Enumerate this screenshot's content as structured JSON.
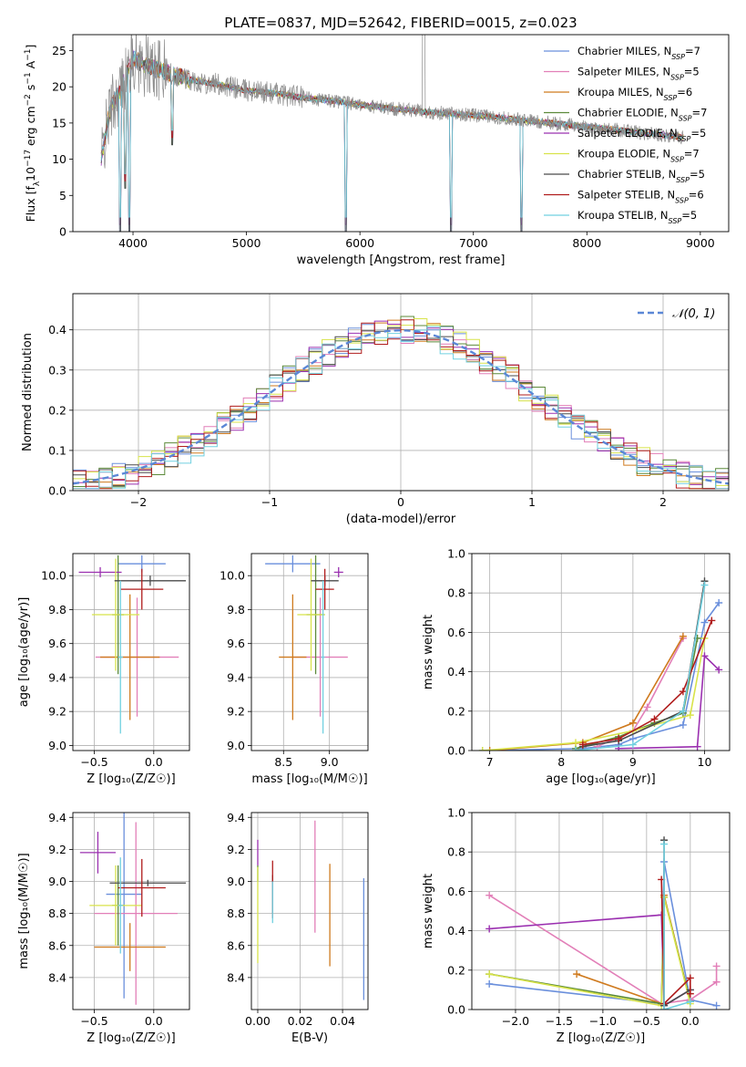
{
  "figure": {
    "title": "PLATE=0837, MJD=52642, FIBERID=0015, z=0.023"
  },
  "models": [
    {
      "name": "Chabrier MILES, N",
      "sub": "SSP",
      "tail": "=7",
      "color": "#6a8fdc"
    },
    {
      "name": "Salpeter MILES, N",
      "sub": "SSP",
      "tail": "=5",
      "color": "#e27fb8"
    },
    {
      "name": "Kroupa MILES, N",
      "sub": "SSP",
      "tail": "=6",
      "color": "#cf7a1e"
    },
    {
      "name": "Chabrier ELODIE, N",
      "sub": "SSP",
      "tail": "=7",
      "color": "#5c8a3a"
    },
    {
      "name": "Salpeter ELODIE, N",
      "sub": "SSP",
      "tail": "=5",
      "color": "#9b30b0"
    },
    {
      "name": "Kroupa ELODIE, N",
      "sub": "SSP",
      "tail": "=7",
      "color": "#d8e34a"
    },
    {
      "name": "Chabrier STELIB, N",
      "sub": "SSP",
      "tail": "=5",
      "color": "#4a4a4a"
    },
    {
      "name": "Salpeter STELIB, N",
      "sub": "SSP",
      "tail": "=6",
      "color": "#b01c1c"
    },
    {
      "name": "Kroupa STELIB, N",
      "sub": "SSP",
      "tail": "=5",
      "color": "#70d0e0"
    }
  ],
  "chart_data": [
    {
      "id": "spectrum",
      "type": "line",
      "xlabel": "wavelength [Angstrom, rest frame]",
      "ylabel": "Flux [f_λ 10^-17 erg cm^-2 s^-1 A^-1]",
      "xlim": [
        3470,
        9250
      ],
      "ylim": [
        0,
        27.2
      ],
      "xticks": [
        4000,
        5000,
        6000,
        7000,
        8000,
        9000
      ],
      "yticks": [
        0,
        5,
        10,
        15,
        20,
        25
      ],
      "data_color": "#8c8c8c",
      "continuum": {
        "x": [
          3720,
          3800,
          3900,
          3950,
          4000,
          4100,
          4300,
          4500,
          4700,
          5000,
          5300,
          5500,
          5800,
          6000,
          6300,
          6600,
          6900,
          7200,
          7500,
          7800,
          8100,
          8400,
          8700,
          8850
        ],
        "y": [
          10,
          17,
          20,
          22,
          24,
          23,
          22,
          21,
          20.5,
          19.5,
          19,
          18.5,
          18,
          17.5,
          17,
          16.5,
          16.2,
          15.8,
          15.3,
          14.8,
          14.3,
          13.8,
          13.3,
          13
        ]
      },
      "dips": [
        {
          "x": 3890,
          "y": 0
        },
        {
          "x": 3970,
          "y": 0
        },
        {
          "x": 5875,
          "y": 0
        },
        {
          "x": 6800,
          "y": 0
        },
        {
          "x": 7420,
          "y": 0
        },
        {
          "x": 3935,
          "y": 6
        },
        {
          "x": 4345,
          "y": 12
        }
      ],
      "peaks": [
        {
          "x": 6563,
          "y": 27.2
        }
      ]
    },
    {
      "id": "residuals",
      "type": "line",
      "xlabel": "(data-model)/error",
      "ylabel": "Normed distribution",
      "xlim": [
        -2.5,
        2.5
      ],
      "ylim": [
        0,
        0.49
      ],
      "xticks": [
        -2,
        -1,
        0,
        1,
        2
      ],
      "yticks": [
        0.0,
        0.1,
        0.2,
        0.3,
        0.4
      ],
      "bin_width": 0.1,
      "gauss_label": "𝒩(0, 1)",
      "gauss_color": "#5b87d6"
    },
    {
      "id": "age_vs_Z",
      "type": "scatter",
      "xlabel": "Z [log₁₀(Z/Z☉)]",
      "ylabel": "age  [log₁₀(age/yr)]",
      "xlim": [
        -0.68,
        0.3
      ],
      "ylim": [
        8.97,
        10.13
      ],
      "xticks": [
        -0.5,
        0.0
      ],
      "yticks": [
        9.0,
        9.2,
        9.4,
        9.6,
        9.8,
        10.0
      ],
      "points": [
        {
          "x": -0.1,
          "y": 10.07,
          "xe": 0.2,
          "ye": 0.05,
          "c": 0
        },
        {
          "x": -0.14,
          "y": 9.52,
          "xe": 0.35,
          "ye": 0.35,
          "c": 1
        },
        {
          "x": -0.2,
          "y": 9.52,
          "xe": 0.25,
          "ye": 0.37,
          "c": 2
        },
        {
          "x": -0.3,
          "y": 9.77,
          "xe": 0.05,
          "ye": 0.35,
          "c": 3
        },
        {
          "x": -0.45,
          "y": 10.02,
          "xe": 0.18,
          "ye": 0.03,
          "c": 4
        },
        {
          "x": -0.32,
          "y": 9.77,
          "xe": 0.2,
          "ye": 0.33,
          "c": 5
        },
        {
          "x": -0.03,
          "y": 9.97,
          "xe": 0.3,
          "ye": 0.03,
          "c": 6
        },
        {
          "x": -0.1,
          "y": 9.92,
          "xe": 0.18,
          "ye": 0.12,
          "c": 7
        },
        {
          "x": -0.28,
          "y": 9.52,
          "xe": 0.02,
          "ye": 0.45,
          "c": 8
        }
      ]
    },
    {
      "id": "age_vs_mass",
      "type": "scatter",
      "xlabel": "mass [log₁₀(M/M☉)]",
      "ylabel": "",
      "xlim": [
        8.15,
        9.42
      ],
      "ylim": [
        8.97,
        10.13
      ],
      "xticks": [
        8.5,
        9.0
      ],
      "yticks": [
        9.0,
        9.2,
        9.4,
        9.6,
        9.8,
        10.0
      ],
      "points": [
        {
          "x": 8.6,
          "y": 10.07,
          "xe": 0.3,
          "ye": 0.05,
          "c": 0
        },
        {
          "x": 8.9,
          "y": 9.52,
          "xe": 0.3,
          "ye": 0.35,
          "c": 1
        },
        {
          "x": 8.6,
          "y": 9.52,
          "xe": 0.15,
          "ye": 0.37,
          "c": 2
        },
        {
          "x": 8.85,
          "y": 9.77,
          "xe": 0.1,
          "ye": 0.35,
          "c": 3
        },
        {
          "x": 9.1,
          "y": 10.02,
          "xe": 0.05,
          "ye": 0.03,
          "c": 4
        },
        {
          "x": 8.8,
          "y": 9.77,
          "xe": 0.15,
          "ye": 0.33,
          "c": 5
        },
        {
          "x": 8.95,
          "y": 9.97,
          "xe": 0.15,
          "ye": 0.03,
          "c": 6
        },
        {
          "x": 8.95,
          "y": 9.92,
          "xe": 0.1,
          "ye": 0.12,
          "c": 7
        },
        {
          "x": 8.93,
          "y": 9.52,
          "xe": 0.02,
          "ye": 0.45,
          "c": 8
        }
      ]
    },
    {
      "id": "mass_weight_vs_age",
      "type": "line",
      "xlabel": "age  [log₁₀(age/yr)]",
      "ylabel": "mass weight",
      "xlim": [
        6.75,
        10.35
      ],
      "ylim": [
        0,
        1.0
      ],
      "xticks": [
        7,
        8,
        9,
        10
      ],
      "yticks": [
        0.0,
        0.2,
        0.4,
        0.6,
        0.8,
        1.0
      ],
      "series": [
        {
          "c": 0,
          "x": [
            6.9,
            8.3,
            8.8,
            9.0,
            9.7,
            10.0,
            10.2
          ],
          "y": [
            0.0,
            0.01,
            0.03,
            0.06,
            0.13,
            0.65,
            0.75
          ]
        },
        {
          "c": 1,
          "x": [
            8.5,
            9.0,
            9.2,
            9.7
          ],
          "y": [
            0.02,
            0.1,
            0.22,
            0.57
          ]
        },
        {
          "c": 2,
          "x": [
            7.0,
            8.3,
            9.0,
            9.7
          ],
          "y": [
            0.0,
            0.04,
            0.14,
            0.58
          ]
        },
        {
          "c": 3,
          "x": [
            8.2,
            8.8,
            9.3,
            9.7,
            9.9
          ],
          "y": [
            0.01,
            0.07,
            0.14,
            0.19,
            0.57
          ]
        },
        {
          "c": 4,
          "x": [
            8.8,
            9.9,
            10.0,
            10.2
          ],
          "y": [
            0.01,
            0.02,
            0.48,
            0.41
          ]
        },
        {
          "c": 5,
          "x": [
            6.9,
            8.2,
            9.0,
            9.8,
            10.0
          ],
          "y": [
            0.0,
            0.04,
            0.1,
            0.18,
            0.57
          ]
        },
        {
          "c": 6,
          "x": [
            8.3,
            8.8,
            9.7,
            10.0
          ],
          "y": [
            0.02,
            0.05,
            0.2,
            0.86
          ]
        },
        {
          "c": 7,
          "x": [
            8.3,
            8.8,
            9.3,
            9.7,
            10.1
          ],
          "y": [
            0.03,
            0.06,
            0.16,
            0.3,
            0.66
          ]
        },
        {
          "c": 8,
          "x": [
            8.2,
            9.0,
            9.7,
            10.0
          ],
          "y": [
            0.0,
            0.03,
            0.2,
            0.84
          ]
        }
      ]
    },
    {
      "id": "mass_vs_Z",
      "type": "scatter",
      "xlabel": "Z [log₁₀(Z/Z☉)]",
      "ylabel": "mass [log₁₀(M/M☉)]",
      "xlim": [
        -0.68,
        0.3
      ],
      "ylim": [
        8.2,
        9.43
      ],
      "xticks": [
        -0.5,
        0.0
      ],
      "yticks": [
        8.4,
        8.6,
        8.8,
        9.0,
        9.2,
        9.4
      ],
      "points": [
        {
          "x": -0.25,
          "y": 8.92,
          "xe": 0.15,
          "ye": 0.65,
          "c": 0
        },
        {
          "x": -0.15,
          "y": 8.8,
          "xe": 0.35,
          "ye": 0.57,
          "c": 1
        },
        {
          "x": -0.2,
          "y": 8.59,
          "xe": 0.3,
          "ye": 0.15,
          "c": 2
        },
        {
          "x": -0.3,
          "y": 8.85,
          "xe": 0.05,
          "ye": 0.25,
          "c": 3
        },
        {
          "x": -0.47,
          "y": 9.18,
          "xe": 0.15,
          "ye": 0.13,
          "c": 4
        },
        {
          "x": -0.32,
          "y": 8.85,
          "xe": 0.22,
          "ye": 0.25,
          "c": 5
        },
        {
          "x": -0.05,
          "y": 8.99,
          "xe": 0.32,
          "ye": 0.02,
          "c": 6
        },
        {
          "x": -0.1,
          "y": 8.96,
          "xe": 0.2,
          "ye": 0.18,
          "c": 7
        },
        {
          "x": -0.28,
          "y": 8.85,
          "xe": 0.02,
          "ye": 0.3,
          "c": 8
        }
      ]
    },
    {
      "id": "mass_vs_EBV",
      "type": "scatter",
      "xlabel": "E(B-V)",
      "ylabel": "",
      "xlim": [
        -0.003,
        0.052
      ],
      "ylim": [
        8.2,
        9.43
      ],
      "xticks": [
        0.0,
        0.02,
        0.04
      ],
      "yticks": [
        8.4,
        8.6,
        8.8,
        9.0,
        9.2,
        9.4
      ],
      "points": [
        {
          "x": 0.05,
          "y": 8.64,
          "xe": 0,
          "ye": 0.38,
          "c": 0
        },
        {
          "x": 0.027,
          "y": 9.03,
          "xe": 0,
          "ye": 0.35,
          "c": 1
        },
        {
          "x": 0.034,
          "y": 8.79,
          "xe": 0,
          "ye": 0.32,
          "c": 2
        },
        {
          "x": 0.0,
          "y": 9.05,
          "xe": 0,
          "ye": 0.05,
          "c": 3
        },
        {
          "x": 0.0,
          "y": 9.18,
          "xe": 0,
          "ye": 0.08,
          "c": 4
        },
        {
          "x": 0.0,
          "y": 8.79,
          "xe": 0,
          "ye": 0.3,
          "c": 5
        },
        {
          "x": 0.007,
          "y": 8.92,
          "xe": 0,
          "ye": 0.12,
          "c": 6
        },
        {
          "x": 0.007,
          "y": 8.95,
          "xe": 0,
          "ye": 0.18,
          "c": 7
        },
        {
          "x": 0.007,
          "y": 8.87,
          "xe": 0,
          "ye": 0.13,
          "c": 8
        }
      ]
    },
    {
      "id": "mass_weight_vs_Z",
      "type": "line",
      "xlabel": "Z [log₁₀(Z/Z☉)]",
      "ylabel": "mass weight",
      "xlim": [
        -2.5,
        0.45
      ],
      "ylim": [
        0,
        1.0
      ],
      "xticks": [
        -2.0,
        -1.5,
        -1.0,
        -0.5,
        0.0
      ],
      "yticks": [
        0.0,
        0.2,
        0.4,
        0.6,
        0.8,
        1.0
      ],
      "series": [
        {
          "c": 0,
          "x": [
            -2.3,
            -0.33,
            -0.3,
            0.0,
            0.3
          ],
          "y": [
            0.13,
            0.03,
            0.75,
            0.05,
            0.02
          ]
        },
        {
          "c": 1,
          "x": [
            -2.3,
            -0.33,
            0.0,
            0.3,
            0.3
          ],
          "y": [
            0.58,
            0.03,
            0.05,
            0.14,
            0.22
          ]
        },
        {
          "c": 2,
          "x": [
            -1.3,
            -0.33,
            -0.3,
            0.0
          ],
          "y": [
            0.18,
            0.03,
            0.58,
            0.04
          ]
        },
        {
          "c": 3,
          "x": [
            -2.3,
            -0.33,
            -0.3,
            0.0
          ],
          "y": [
            0.18,
            0.03,
            0.57,
            0.04
          ]
        },
        {
          "c": 4,
          "x": [
            -2.3,
            -0.33,
            -0.3,
            0.0
          ],
          "y": [
            0.41,
            0.48,
            0.02,
            0.1
          ]
        },
        {
          "c": 5,
          "x": [
            -2.3,
            -0.33,
            -0.3,
            0.0
          ],
          "y": [
            0.18,
            0.02,
            0.57,
            0.03
          ]
        },
        {
          "c": 6,
          "x": [
            -0.3,
            -0.3,
            0.0
          ],
          "y": [
            0.86,
            0.02,
            0.1
          ]
        },
        {
          "c": 7,
          "x": [
            -0.33,
            -0.3,
            0.0,
            0.0
          ],
          "y": [
            0.66,
            0.03,
            0.16,
            0.08
          ]
        },
        {
          "c": 8,
          "x": [
            -0.3,
            -0.3,
            0.0
          ],
          "y": [
            0.84,
            0.0,
            0.04
          ]
        }
      ]
    }
  ]
}
